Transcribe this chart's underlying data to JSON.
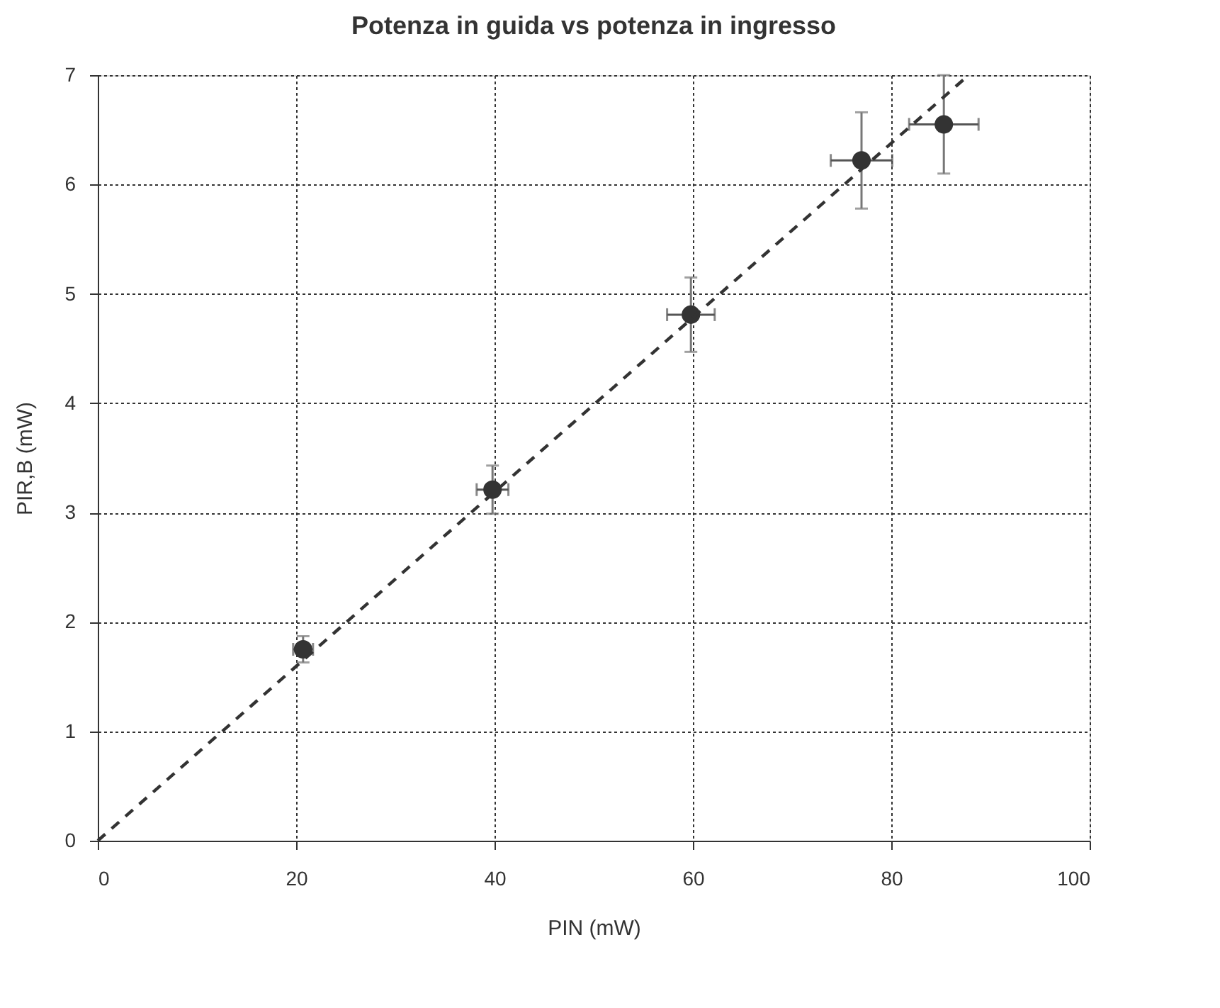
{
  "chart_data": {
    "type": "scatter",
    "title": "Potenza in guida vs potenza in ingresso",
    "xlabel": "PIN (mW)",
    "ylabel": "PIR,B (mW)",
    "xlim": [
      0,
      100
    ],
    "xticks": [
      0,
      20,
      40,
      60,
      80,
      100
    ],
    "ylim": [
      0,
      7
    ],
    "yticks": [
      0,
      1,
      2,
      3,
      4,
      5,
      6,
      7
    ],
    "grid": true,
    "series": [
      {
        "type": "scatter",
        "color": "#333333",
        "marker": "circle",
        "x": [
          20.7,
          39.8,
          59.8,
          77.0,
          85.3
        ],
        "values": [
          1.75,
          3.21,
          4.81,
          6.22,
          6.55
        ],
        "errors": [
          0.12,
          0.22,
          0.34,
          0.44,
          0.45
        ],
        "xerrors": [
          1.0,
          1.6,
          2.4,
          3.1,
          3.5
        ]
      },
      {
        "type": "line",
        "color": "#333333",
        "line_style": "dashed",
        "marker": "none",
        "x": [
          0,
          87.8
        ],
        "values": [
          0,
          7
        ]
      }
    ]
  }
}
